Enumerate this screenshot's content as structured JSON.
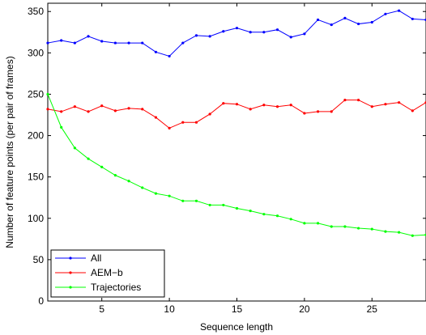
{
  "chart_data": {
    "type": "line",
    "xlabel": "Sequence length",
    "ylabel": "Number of feature points (per pair of frames)",
    "xlim": [
      1,
      29
    ],
    "ylim": [
      0,
      360
    ],
    "x_ticks": [
      "5",
      "10",
      "15",
      "20",
      "25"
    ],
    "y_ticks": [
      "0",
      "50",
      "100",
      "150",
      "200",
      "250",
      "300",
      "350"
    ],
    "grid": false,
    "legend_position": "bottom-left",
    "x": [
      1,
      2,
      3,
      4,
      5,
      6,
      7,
      8,
      9,
      10,
      11,
      12,
      13,
      14,
      15,
      16,
      17,
      18,
      19,
      20,
      21,
      22,
      23,
      24,
      25,
      26,
      27,
      28,
      29
    ],
    "series": [
      {
        "name": "All",
        "color": "#0000ff",
        "values": [
          312,
          315,
          312,
          320,
          314,
          312,
          312,
          312,
          301,
          296,
          312,
          321,
          320,
          326,
          330,
          325,
          325,
          328,
          319,
          323,
          340,
          334,
          342,
          335,
          337,
          347,
          351,
          341,
          340
        ]
      },
      {
        "name": "AEM−b",
        "color": "#ff0000",
        "values": [
          232,
          229,
          235,
          229,
          236,
          230,
          233,
          232,
          222,
          209,
          216,
          216,
          226,
          239,
          238,
          232,
          237,
          235,
          237,
          227,
          229,
          229,
          243,
          243,
          235,
          238,
          240,
          230,
          240
        ]
      },
      {
        "name": "Trajectories",
        "color": "#00ff00",
        "values": [
          250,
          210,
          185,
          172,
          162,
          152,
          145,
          137,
          130,
          127,
          121,
          121,
          116,
          116,
          112,
          109,
          105,
          103,
          99,
          94,
          94,
          90,
          90,
          88,
          87,
          84,
          83,
          79,
          80
        ]
      }
    ]
  }
}
